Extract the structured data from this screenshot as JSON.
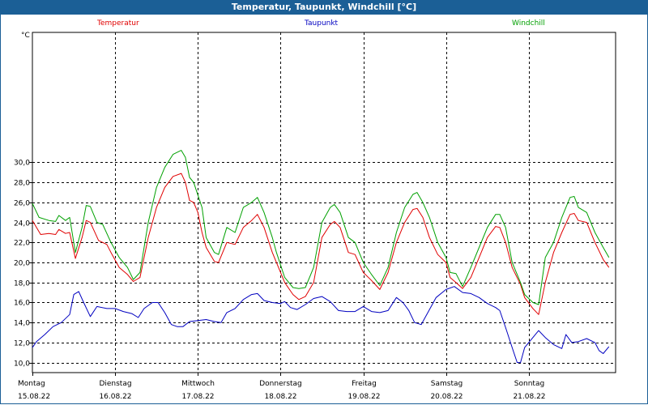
{
  "chart_data": {
    "type": "line",
    "title": "Temperatur, Taupunkt, Windchill [°C]",
    "ylabel": "°C",
    "ylim": [
      9,
      42.5
    ],
    "yticks": [
      10,
      12,
      14,
      16,
      18,
      20,
      22,
      24,
      26,
      28,
      30
    ],
    "ytick_labels": [
      "10,0",
      "12,0",
      "14,0",
      "16,0",
      "18,0",
      "20,0",
      "22,0",
      "24,0",
      "26,0",
      "28,0",
      "30,0"
    ],
    "xlim": [
      0,
      7.05
    ],
    "day_ticks": [
      0,
      1,
      2,
      3,
      4,
      5,
      6
    ],
    "grid": true,
    "days": [
      {
        "name": "Montag",
        "date": "15.08.22"
      },
      {
        "name": "Dienstag",
        "date": "16.08.22"
      },
      {
        "name": "Mittwoch",
        "date": "17.08.22"
      },
      {
        "name": "Donnerstag",
        "date": "18.08.22"
      },
      {
        "name": "Freitag",
        "date": "19.08.22"
      },
      {
        "name": "Samstag",
        "date": "20.08.22"
      },
      {
        "name": "Sonntag",
        "date": "21.08.22"
      }
    ],
    "series": [
      {
        "name": "Temperatur",
        "color": "#e00000",
        "points": [
          [
            0.0,
            24.2
          ],
          [
            0.1,
            22.8
          ],
          [
            0.2,
            22.9
          ],
          [
            0.28,
            22.8
          ],
          [
            0.32,
            23.3
          ],
          [
            0.4,
            22.9
          ],
          [
            0.45,
            23.0
          ],
          [
            0.52,
            20.4
          ],
          [
            0.6,
            22.5
          ],
          [
            0.65,
            24.2
          ],
          [
            0.7,
            24.0
          ],
          [
            0.8,
            22.2
          ],
          [
            0.9,
            21.8
          ],
          [
            0.95,
            21.0
          ],
          [
            1.05,
            19.5
          ],
          [
            1.15,
            18.8
          ],
          [
            1.22,
            18.1
          ],
          [
            1.3,
            18.5
          ],
          [
            1.4,
            22.5
          ],
          [
            1.5,
            25.5
          ],
          [
            1.6,
            27.5
          ],
          [
            1.7,
            28.6
          ],
          [
            1.8,
            28.9
          ],
          [
            1.85,
            28.0
          ],
          [
            1.9,
            26.2
          ],
          [
            1.95,
            26.0
          ],
          [
            2.0,
            25.0
          ],
          [
            2.05,
            23.0
          ],
          [
            2.1,
            21.5
          ],
          [
            2.2,
            20.1
          ],
          [
            2.25,
            20.0
          ],
          [
            2.35,
            22.0
          ],
          [
            2.45,
            21.8
          ],
          [
            2.55,
            23.5
          ],
          [
            2.65,
            24.2
          ],
          [
            2.72,
            24.8
          ],
          [
            2.8,
            23.5
          ],
          [
            2.9,
            21.0
          ],
          [
            2.95,
            20.0
          ],
          [
            3.05,
            18.0
          ],
          [
            3.15,
            16.8
          ],
          [
            3.22,
            16.3
          ],
          [
            3.3,
            16.6
          ],
          [
            3.4,
            18.0
          ],
          [
            3.5,
            22.5
          ],
          [
            3.6,
            23.8
          ],
          [
            3.65,
            24.1
          ],
          [
            3.72,
            23.5
          ],
          [
            3.82,
            21.0
          ],
          [
            3.9,
            20.8
          ],
          [
            4.0,
            19.0
          ],
          [
            4.1,
            18.2
          ],
          [
            4.2,
            17.3
          ],
          [
            4.3,
            19.0
          ],
          [
            4.4,
            22.0
          ],
          [
            4.5,
            24.0
          ],
          [
            4.6,
            25.3
          ],
          [
            4.65,
            25.4
          ],
          [
            4.72,
            24.5
          ],
          [
            4.8,
            22.5
          ],
          [
            4.9,
            20.8
          ],
          [
            5.0,
            20.0
          ],
          [
            5.05,
            18.5
          ],
          [
            5.12,
            18.0
          ],
          [
            5.2,
            17.4
          ],
          [
            5.3,
            18.5
          ],
          [
            5.4,
            20.5
          ],
          [
            5.5,
            22.5
          ],
          [
            5.6,
            23.6
          ],
          [
            5.65,
            23.5
          ],
          [
            5.72,
            22.0
          ],
          [
            5.8,
            19.5
          ],
          [
            5.9,
            17.8
          ],
          [
            5.95,
            16.5
          ],
          [
            6.05,
            15.4
          ],
          [
            6.12,
            14.8
          ],
          [
            6.2,
            18.0
          ],
          [
            6.3,
            21.0
          ],
          [
            6.4,
            23.0
          ],
          [
            6.5,
            24.8
          ],
          [
            6.55,
            24.9
          ],
          [
            6.6,
            24.2
          ],
          [
            6.7,
            24.0
          ],
          [
            6.8,
            22.0
          ],
          [
            6.9,
            20.3
          ],
          [
            6.97,
            19.5
          ]
        ]
      },
      {
        "name": "Taupunkt",
        "color": "#0000c0",
        "points": [
          [
            0.0,
            11.5
          ],
          [
            0.05,
            12.1
          ],
          [
            0.15,
            12.8
          ],
          [
            0.25,
            13.6
          ],
          [
            0.35,
            14.0
          ],
          [
            0.45,
            14.8
          ],
          [
            0.5,
            16.8
          ],
          [
            0.56,
            17.1
          ],
          [
            0.62,
            16.0
          ],
          [
            0.7,
            14.6
          ],
          [
            0.78,
            15.6
          ],
          [
            0.9,
            15.4
          ],
          [
            1.0,
            15.4
          ],
          [
            1.1,
            15.1
          ],
          [
            1.2,
            14.9
          ],
          [
            1.28,
            14.5
          ],
          [
            1.35,
            15.4
          ],
          [
            1.45,
            16.0
          ],
          [
            1.52,
            16.0
          ],
          [
            1.6,
            15.0
          ],
          [
            1.68,
            13.8
          ],
          [
            1.75,
            13.6
          ],
          [
            1.82,
            13.6
          ],
          [
            1.9,
            14.1
          ],
          [
            2.0,
            14.2
          ],
          [
            2.1,
            14.3
          ],
          [
            2.2,
            14.1
          ],
          [
            2.28,
            14.0
          ],
          [
            2.35,
            15.0
          ],
          [
            2.45,
            15.4
          ],
          [
            2.55,
            16.3
          ],
          [
            2.65,
            16.8
          ],
          [
            2.72,
            16.9
          ],
          [
            2.8,
            16.2
          ],
          [
            2.9,
            16.0
          ],
          [
            3.0,
            15.9
          ],
          [
            3.05,
            16.1
          ],
          [
            3.12,
            15.5
          ],
          [
            3.2,
            15.3
          ],
          [
            3.3,
            15.8
          ],
          [
            3.4,
            16.4
          ],
          [
            3.5,
            16.6
          ],
          [
            3.6,
            16.1
          ],
          [
            3.7,
            15.2
          ],
          [
            3.8,
            15.1
          ],
          [
            3.9,
            15.1
          ],
          [
            4.0,
            15.6
          ],
          [
            4.1,
            15.1
          ],
          [
            4.2,
            15.0
          ],
          [
            4.3,
            15.2
          ],
          [
            4.4,
            16.5
          ],
          [
            4.48,
            16.0
          ],
          [
            4.55,
            15.2
          ],
          [
            4.62,
            14.0
          ],
          [
            4.7,
            13.8
          ],
          [
            4.78,
            15.0
          ],
          [
            4.88,
            16.5
          ],
          [
            5.0,
            17.3
          ],
          [
            5.1,
            17.6
          ],
          [
            5.2,
            17.0
          ],
          [
            5.3,
            16.9
          ],
          [
            5.4,
            16.5
          ],
          [
            5.5,
            15.9
          ],
          [
            5.6,
            15.5
          ],
          [
            5.65,
            15.2
          ],
          [
            5.72,
            13.5
          ],
          [
            5.8,
            11.5
          ],
          [
            5.86,
            10.0
          ],
          [
            5.9,
            10.0
          ],
          [
            5.95,
            11.5
          ],
          [
            6.05,
            12.5
          ],
          [
            6.12,
            13.2
          ],
          [
            6.2,
            12.5
          ],
          [
            6.3,
            11.8
          ],
          [
            6.4,
            11.4
          ],
          [
            6.45,
            12.8
          ],
          [
            6.52,
            12.0
          ],
          [
            6.6,
            12.1
          ],
          [
            6.7,
            12.4
          ],
          [
            6.8,
            12.0
          ],
          [
            6.85,
            11.2
          ],
          [
            6.9,
            10.9
          ],
          [
            6.97,
            11.6
          ]
        ]
      },
      {
        "name": "Windchill",
        "color": "#00a000",
        "points": [
          [
            0.0,
            25.9
          ],
          [
            0.08,
            24.5
          ],
          [
            0.2,
            24.2
          ],
          [
            0.28,
            24.1
          ],
          [
            0.32,
            24.7
          ],
          [
            0.4,
            24.2
          ],
          [
            0.45,
            24.5
          ],
          [
            0.52,
            21.0
          ],
          [
            0.6,
            23.5
          ],
          [
            0.65,
            25.7
          ],
          [
            0.7,
            25.6
          ],
          [
            0.78,
            24.0
          ],
          [
            0.85,
            23.8
          ],
          [
            0.95,
            22.0
          ],
          [
            1.05,
            20.5
          ],
          [
            1.15,
            19.5
          ],
          [
            1.22,
            18.3
          ],
          [
            1.3,
            19.0
          ],
          [
            1.4,
            24.0
          ],
          [
            1.5,
            27.5
          ],
          [
            1.6,
            29.5
          ],
          [
            1.7,
            30.8
          ],
          [
            1.8,
            31.2
          ],
          [
            1.85,
            30.5
          ],
          [
            1.9,
            28.5
          ],
          [
            1.95,
            28.0
          ],
          [
            2.05,
            25.5
          ],
          [
            2.1,
            22.5
          ],
          [
            2.2,
            21.0
          ],
          [
            2.25,
            20.8
          ],
          [
            2.35,
            23.5
          ],
          [
            2.45,
            23.0
          ],
          [
            2.55,
            25.5
          ],
          [
            2.65,
            26.0
          ],
          [
            2.72,
            26.5
          ],
          [
            2.8,
            25.0
          ],
          [
            2.9,
            22.5
          ],
          [
            2.95,
            21.0
          ],
          [
            3.05,
            18.5
          ],
          [
            3.15,
            17.5
          ],
          [
            3.22,
            17.4
          ],
          [
            3.3,
            17.5
          ],
          [
            3.4,
            19.5
          ],
          [
            3.5,
            24.0
          ],
          [
            3.6,
            25.5
          ],
          [
            3.65,
            25.8
          ],
          [
            3.72,
            25.0
          ],
          [
            3.82,
            22.5
          ],
          [
            3.9,
            22.0
          ],
          [
            4.0,
            20.0
          ],
          [
            4.1,
            18.8
          ],
          [
            4.2,
            17.7
          ],
          [
            4.3,
            19.5
          ],
          [
            4.4,
            23.0
          ],
          [
            4.5,
            25.5
          ],
          [
            4.6,
            26.8
          ],
          [
            4.65,
            27.0
          ],
          [
            4.72,
            26.0
          ],
          [
            4.8,
            24.5
          ],
          [
            4.9,
            22.0
          ],
          [
            5.0,
            20.5
          ],
          [
            5.05,
            19.0
          ],
          [
            5.12,
            18.9
          ],
          [
            5.2,
            17.6
          ],
          [
            5.3,
            19.5
          ],
          [
            5.4,
            21.5
          ],
          [
            5.5,
            23.5
          ],
          [
            5.6,
            24.8
          ],
          [
            5.65,
            24.8
          ],
          [
            5.72,
            23.5
          ],
          [
            5.8,
            20.0
          ],
          [
            5.9,
            18.0
          ],
          [
            5.95,
            16.8
          ],
          [
            6.05,
            16.0
          ],
          [
            6.12,
            15.8
          ],
          [
            6.2,
            20.5
          ],
          [
            6.3,
            22.0
          ],
          [
            6.4,
            24.5
          ],
          [
            6.5,
            26.5
          ],
          [
            6.55,
            26.6
          ],
          [
            6.6,
            25.5
          ],
          [
            6.7,
            25.0
          ],
          [
            6.8,
            23.0
          ],
          [
            6.9,
            21.5
          ],
          [
            6.97,
            20.5
          ]
        ]
      }
    ]
  }
}
